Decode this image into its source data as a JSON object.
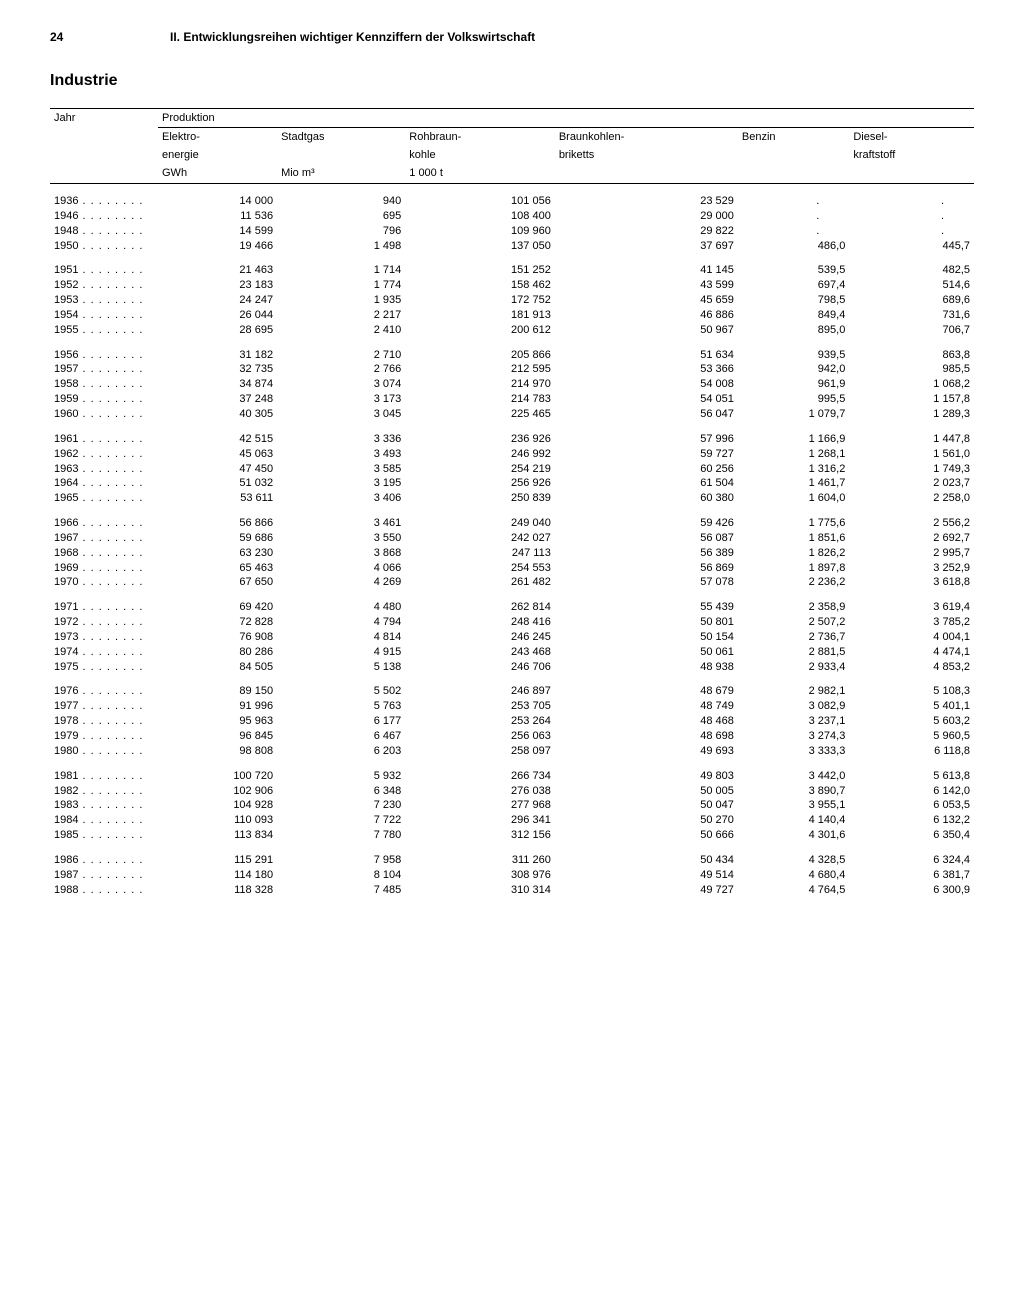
{
  "page": {
    "number": "24",
    "chapter": "II. Entwicklungsreihen wichtiger Kennziffern der Volkswirtschaft",
    "title": "Industrie"
  },
  "table": {
    "year_label": "Jahr",
    "production_label": "Produktion",
    "columns": [
      {
        "label1": "Elektro-",
        "label2": "energie",
        "unit": "GWh"
      },
      {
        "label1": "Stadtgas",
        "label2": "",
        "unit": "Mio m³"
      },
      {
        "label1": "Rohbraun-",
        "label2": "kohle",
        "unit": "1 000 t"
      },
      {
        "label1": "Braunkohlen-",
        "label2": "briketts",
        "unit": ""
      },
      {
        "label1": "Benzin",
        "label2": "",
        "unit": ""
      },
      {
        "label1": "Diesel-",
        "label2": "kraftstoff",
        "unit": ""
      }
    ],
    "groups": [
      [
        {
          "year": "1936",
          "v": [
            "14 000",
            "940",
            "101 056",
            "23 529",
            ".",
            "."
          ]
        },
        {
          "year": "1946",
          "v": [
            "11 536",
            "695",
            "108 400",
            "29 000",
            ".",
            "."
          ]
        },
        {
          "year": "1948",
          "v": [
            "14 599",
            "796",
            "109 960",
            "29 822",
            ".",
            "."
          ]
        },
        {
          "year": "1950",
          "v": [
            "19 466",
            "1 498",
            "137 050",
            "37 697",
            "486,0",
            "445,7"
          ]
        }
      ],
      [
        {
          "year": "1951",
          "v": [
            "21 463",
            "1 714",
            "151 252",
            "41 145",
            "539,5",
            "482,5"
          ]
        },
        {
          "year": "1952",
          "v": [
            "23 183",
            "1 774",
            "158 462",
            "43 599",
            "697,4",
            "514,6"
          ]
        },
        {
          "year": "1953",
          "v": [
            "24 247",
            "1 935",
            "172 752",
            "45 659",
            "798,5",
            "689,6"
          ]
        },
        {
          "year": "1954",
          "v": [
            "26 044",
            "2 217",
            "181 913",
            "46 886",
            "849,4",
            "731,6"
          ]
        },
        {
          "year": "1955",
          "v": [
            "28 695",
            "2 410",
            "200 612",
            "50 967",
            "895,0",
            "706,7"
          ]
        }
      ],
      [
        {
          "year": "1956",
          "v": [
            "31 182",
            "2 710",
            "205 866",
            "51 634",
            "939,5",
            "863,8"
          ]
        },
        {
          "year": "1957",
          "v": [
            "32 735",
            "2 766",
            "212 595",
            "53 366",
            "942,0",
            "985,5"
          ]
        },
        {
          "year": "1958",
          "v": [
            "34 874",
            "3 074",
            "214 970",
            "54 008",
            "961,9",
            "1 068,2"
          ]
        },
        {
          "year": "1959",
          "v": [
            "37 248",
            "3 173",
            "214 783",
            "54 051",
            "995,5",
            "1 157,8"
          ]
        },
        {
          "year": "1960",
          "v": [
            "40 305",
            "3 045",
            "225 465",
            "56 047",
            "1 079,7",
            "1 289,3"
          ]
        }
      ],
      [
        {
          "year": "1961",
          "v": [
            "42 515",
            "3 336",
            "236 926",
            "57 996",
            "1 166,9",
            "1 447,8"
          ]
        },
        {
          "year": "1962",
          "v": [
            "45 063",
            "3 493",
            "246 992",
            "59 727",
            "1 268,1",
            "1 561,0"
          ]
        },
        {
          "year": "1963",
          "v": [
            "47 450",
            "3 585",
            "254 219",
            "60 256",
            "1 316,2",
            "1 749,3"
          ]
        },
        {
          "year": "1964",
          "v": [
            "51 032",
            "3 195",
            "256 926",
            "61 504",
            "1 461,7",
            "2 023,7"
          ]
        },
        {
          "year": "1965",
          "v": [
            "53 611",
            "3 406",
            "250 839",
            "60 380",
            "1 604,0",
            "2 258,0"
          ]
        }
      ],
      [
        {
          "year": "1966",
          "v": [
            "56 866",
            "3 461",
            "249 040",
            "59 426",
            "1 775,6",
            "2 556,2"
          ]
        },
        {
          "year": "1967",
          "v": [
            "59 686",
            "3 550",
            "242 027",
            "56 087",
            "1 851,6",
            "2 692,7"
          ]
        },
        {
          "year": "1968",
          "v": [
            "63 230",
            "3 868",
            "247 113",
            "56 389",
            "1 826,2",
            "2 995,7"
          ]
        },
        {
          "year": "1969",
          "v": [
            "65 463",
            "4 066",
            "254 553",
            "56 869",
            "1 897,8",
            "3 252,9"
          ]
        },
        {
          "year": "1970",
          "v": [
            "67 650",
            "4 269",
            "261 482",
            "57 078",
            "2 236,2",
            "3 618,8"
          ]
        }
      ],
      [
        {
          "year": "1971",
          "v": [
            "69 420",
            "4 480",
            "262 814",
            "55 439",
            "2 358,9",
            "3 619,4"
          ]
        },
        {
          "year": "1972",
          "v": [
            "72 828",
            "4 794",
            "248 416",
            "50 801",
            "2 507,2",
            "3 785,2"
          ]
        },
        {
          "year": "1973",
          "v": [
            "76 908",
            "4 814",
            "246 245",
            "50 154",
            "2 736,7",
            "4 004,1"
          ]
        },
        {
          "year": "1974",
          "v": [
            "80 286",
            "4 915",
            "243 468",
            "50 061",
            "2 881,5",
            "4 474,1"
          ]
        },
        {
          "year": "1975",
          "v": [
            "84 505",
            "5 138",
            "246 706",
            "48 938",
            "2 933,4",
            "4 853,2"
          ]
        }
      ],
      [
        {
          "year": "1976",
          "v": [
            "89 150",
            "5 502",
            "246 897",
            "48 679",
            "2 982,1",
            "5 108,3"
          ]
        },
        {
          "year": "1977",
          "v": [
            "91 996",
            "5 763",
            "253 705",
            "48 749",
            "3 082,9",
            "5 401,1"
          ]
        },
        {
          "year": "1978",
          "v": [
            "95 963",
            "6 177",
            "253 264",
            "48 468",
            "3 237,1",
            "5 603,2"
          ]
        },
        {
          "year": "1979",
          "v": [
            "96 845",
            "6 467",
            "256 063",
            "48 698",
            "3 274,3",
            "5 960,5"
          ]
        },
        {
          "year": "1980",
          "v": [
            "98 808",
            "6 203",
            "258 097",
            "49 693",
            "3 333,3",
            "6 118,8"
          ]
        }
      ],
      [
        {
          "year": "1981",
          "v": [
            "100 720",
            "5 932",
            "266 734",
            "49 803",
            "3 442,0",
            "5 613,8"
          ]
        },
        {
          "year": "1982",
          "v": [
            "102 906",
            "6 348",
            "276 038",
            "50 005",
            "3 890,7",
            "6 142,0"
          ]
        },
        {
          "year": "1983",
          "v": [
            "104 928",
            "7 230",
            "277 968",
            "50 047",
            "3 955,1",
            "6 053,5"
          ]
        },
        {
          "year": "1984",
          "v": [
            "110 093",
            "7 722",
            "296 341",
            "50 270",
            "4 140,4",
            "6 132,2"
          ]
        },
        {
          "year": "1985",
          "v": [
            "113 834",
            "7 780",
            "312 156",
            "50 666",
            "4 301,6",
            "6 350,4"
          ]
        }
      ],
      [
        {
          "year": "1986",
          "v": [
            "115 291",
            "7 958",
            "311 260",
            "50 434",
            "4 328,5",
            "6 324,4"
          ]
        },
        {
          "year": "1987",
          "v": [
            "114 180",
            "8 104",
            "308 976",
            "49 514",
            "4 680,4",
            "6 381,7"
          ]
        },
        {
          "year": "1988",
          "v": [
            "118 328",
            "7 485",
            "310 314",
            "49 727",
            "4 764,5",
            "6 300,9"
          ]
        }
      ]
    ]
  },
  "style": {
    "dots": " . . . . . . . ."
  }
}
